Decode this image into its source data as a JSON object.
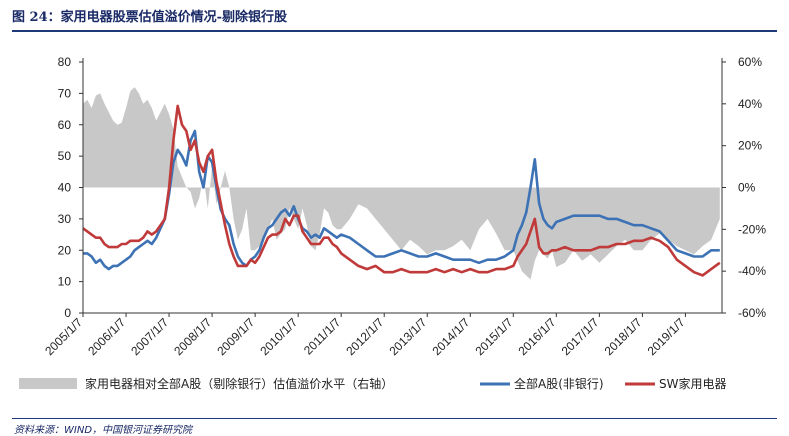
{
  "title": "图 24：家用电器股票估值溢价情况-剔除银行股",
  "source": "资料来源：WIND，中国银河证券研究院",
  "chart_data": {
    "type": "line",
    "x_ticks": [
      "2005/1/7",
      "2006/1/7",
      "2007/1/7",
      "2008/1/7",
      "2009/1/7",
      "2010/1/7",
      "2011/1/7",
      "2012/1/7",
      "2013/1/7",
      "2014/1/7",
      "2015/1/7",
      "2016/1/7",
      "2017/1/7",
      "2018/1/7",
      "2019/1/7"
    ],
    "xlim": [
      2005.0,
      2019.85
    ],
    "y_left": {
      "range": [
        0,
        80
      ],
      "ticks": [
        0,
        10,
        20,
        30,
        40,
        50,
        60,
        70,
        80
      ]
    },
    "y_right": {
      "range": [
        -60,
        60
      ],
      "ticks": [
        "-60%",
        "-40%",
        "-20%",
        "0%",
        "20%",
        "40%",
        "60%"
      ]
    },
    "series": [
      {
        "name": "家用电器相对全部A股（剔除银行）估值溢价水平（右轴）",
        "type": "area",
        "axis": "right",
        "color": "#c8c8c8",
        "x": [
          2005.0,
          2005.1,
          2005.2,
          2005.3,
          2005.4,
          2005.5,
          2005.6,
          2005.7,
          2005.8,
          2005.9,
          2006.0,
          2006.1,
          2006.2,
          2006.3,
          2006.4,
          2006.5,
          2006.6,
          2006.7,
          2006.8,
          2006.9,
          2007.0,
          2007.1,
          2007.2,
          2007.3,
          2007.4,
          2007.5,
          2007.6,
          2007.7,
          2007.8,
          2007.9,
          2008.0,
          2008.1,
          2008.2,
          2008.3,
          2008.4,
          2008.5,
          2008.6,
          2008.7,
          2008.8,
          2008.9,
          2009.0,
          2009.1,
          2009.2,
          2009.3,
          2009.4,
          2009.5,
          2009.6,
          2009.7,
          2009.8,
          2009.9,
          2010.0,
          2010.1,
          2010.2,
          2010.3,
          2010.4,
          2010.5,
          2010.6,
          2010.7,
          2010.8,
          2010.9,
          2011.0,
          2011.2,
          2011.4,
          2011.6,
          2011.8,
          2012.0,
          2012.2,
          2012.4,
          2012.6,
          2012.8,
          2013.0,
          2013.2,
          2013.4,
          2013.6,
          2013.8,
          2014.0,
          2014.2,
          2014.4,
          2014.6,
          2014.8,
          2015.0,
          2015.1,
          2015.2,
          2015.3,
          2015.4,
          2015.5,
          2015.6,
          2015.7,
          2015.8,
          2015.9,
          2016.0,
          2016.2,
          2016.4,
          2016.6,
          2016.8,
          2017.0,
          2017.2,
          2017.4,
          2017.6,
          2017.8,
          2018.0,
          2018.2,
          2018.4,
          2018.6,
          2018.8,
          2019.0,
          2019.2,
          2019.4,
          2019.6,
          2019.8
        ],
        "y": [
          40,
          42,
          38,
          44,
          45,
          40,
          36,
          32,
          30,
          31,
          38,
          46,
          48,
          45,
          40,
          42,
          38,
          32,
          36,
          40,
          35,
          28,
          10,
          5,
          0,
          -2,
          -10,
          -5,
          5,
          -10,
          10,
          -8,
          0,
          8,
          0,
          -15,
          -25,
          -20,
          -10,
          -30,
          -30,
          -28,
          -25,
          -20,
          -15,
          -25,
          -22,
          -20,
          -10,
          -15,
          -20,
          -10,
          -18,
          -28,
          -30,
          -22,
          -10,
          -12,
          -18,
          -20,
          -20,
          -15,
          -8,
          -10,
          -15,
          -20,
          -25,
          -30,
          -25,
          -28,
          -32,
          -30,
          -30,
          -28,
          -25,
          -30,
          -20,
          -15,
          -22,
          -30,
          -30,
          -35,
          -40,
          -42,
          -44,
          -35,
          -30,
          -32,
          -34,
          -30,
          -38,
          -36,
          -30,
          -35,
          -32,
          -36,
          -32,
          -28,
          -25,
          -30,
          -30,
          -25,
          -22,
          -25,
          -28,
          -30,
          -32,
          -28,
          -25,
          -15
        ]
      },
      {
        "name": "全部A股(非银行)",
        "type": "line",
        "axis": "left",
        "color": "#3d72b4",
        "x": [
          2005.0,
          2005.1,
          2005.2,
          2005.3,
          2005.4,
          2005.5,
          2005.6,
          2005.7,
          2005.8,
          2005.9,
          2006.0,
          2006.1,
          2006.2,
          2006.3,
          2006.4,
          2006.5,
          2006.6,
          2006.7,
          2006.8,
          2006.9,
          2007.0,
          2007.1,
          2007.2,
          2007.3,
          2007.4,
          2007.5,
          2007.6,
          2007.7,
          2007.8,
          2007.9,
          2008.0,
          2008.1,
          2008.2,
          2008.3,
          2008.4,
          2008.5,
          2008.6,
          2008.7,
          2008.8,
          2008.9,
          2009.0,
          2009.1,
          2009.2,
          2009.3,
          2009.4,
          2009.5,
          2009.6,
          2009.7,
          2009.8,
          2009.9,
          2010.0,
          2010.1,
          2010.2,
          2010.3,
          2010.4,
          2010.5,
          2010.6,
          2010.7,
          2010.8,
          2010.9,
          2011.0,
          2011.2,
          2011.4,
          2011.6,
          2011.8,
          2012.0,
          2012.2,
          2012.4,
          2012.6,
          2012.8,
          2013.0,
          2013.2,
          2013.4,
          2013.6,
          2013.8,
          2014.0,
          2014.2,
          2014.4,
          2014.6,
          2014.8,
          2015.0,
          2015.1,
          2015.2,
          2015.3,
          2015.4,
          2015.5,
          2015.6,
          2015.7,
          2015.8,
          2015.9,
          2016.0,
          2016.2,
          2016.4,
          2016.6,
          2016.8,
          2017.0,
          2017.2,
          2017.4,
          2017.6,
          2017.8,
          2018.0,
          2018.2,
          2018.4,
          2018.6,
          2018.8,
          2019.0,
          2019.2,
          2019.4,
          2019.6,
          2019.8
        ],
        "y": [
          19,
          19,
          18,
          16,
          17,
          15,
          14,
          15,
          15,
          16,
          17,
          18,
          20,
          21,
          22,
          23,
          22,
          24,
          27,
          30,
          38,
          48,
          52,
          50,
          47,
          55,
          58,
          45,
          40,
          50,
          48,
          40,
          33,
          30,
          28,
          22,
          18,
          16,
          15,
          17,
          18,
          20,
          24,
          27,
          28,
          30,
          32,
          33,
          31,
          34,
          30,
          27,
          26,
          24,
          25,
          24,
          27,
          26,
          25,
          24,
          25,
          24,
          22,
          20,
          18,
          18,
          19,
          20,
          19,
          18,
          18,
          19,
          18,
          17,
          17,
          17,
          16,
          17,
          17,
          18,
          20,
          25,
          28,
          32,
          40,
          49,
          35,
          30,
          28,
          27,
          29,
          30,
          31,
          31,
          31,
          31,
          30,
          30,
          29,
          28,
          28,
          27,
          26,
          23,
          20,
          19,
          18,
          18,
          20,
          20
        ]
      },
      {
        "name": "SW家用电器",
        "type": "line",
        "axis": "left",
        "color": "#c03a3a",
        "x": [
          2005.0,
          2005.1,
          2005.2,
          2005.3,
          2005.4,
          2005.5,
          2005.6,
          2005.7,
          2005.8,
          2005.9,
          2006.0,
          2006.1,
          2006.2,
          2006.3,
          2006.4,
          2006.5,
          2006.6,
          2006.7,
          2006.8,
          2006.9,
          2007.0,
          2007.1,
          2007.2,
          2007.3,
          2007.4,
          2007.5,
          2007.6,
          2007.7,
          2007.8,
          2007.9,
          2008.0,
          2008.1,
          2008.2,
          2008.3,
          2008.4,
          2008.5,
          2008.6,
          2008.7,
          2008.8,
          2008.9,
          2009.0,
          2009.1,
          2009.2,
          2009.3,
          2009.4,
          2009.5,
          2009.6,
          2009.7,
          2009.8,
          2009.9,
          2010.0,
          2010.1,
          2010.2,
          2010.3,
          2010.4,
          2010.5,
          2010.6,
          2010.7,
          2010.8,
          2010.9,
          2011.0,
          2011.2,
          2011.4,
          2011.6,
          2011.8,
          2012.0,
          2012.2,
          2012.4,
          2012.6,
          2012.8,
          2013.0,
          2013.2,
          2013.4,
          2013.6,
          2013.8,
          2014.0,
          2014.2,
          2014.4,
          2014.6,
          2014.8,
          2015.0,
          2015.1,
          2015.2,
          2015.3,
          2015.4,
          2015.5,
          2015.6,
          2015.7,
          2015.8,
          2015.9,
          2016.0,
          2016.2,
          2016.4,
          2016.6,
          2016.8,
          2017.0,
          2017.2,
          2017.4,
          2017.6,
          2017.8,
          2018.0,
          2018.2,
          2018.4,
          2018.6,
          2018.8,
          2019.0,
          2019.2,
          2019.4,
          2019.6,
          2019.8
        ],
        "y": [
          27,
          26,
          25,
          24,
          24,
          22,
          21,
          21,
          21,
          22,
          22,
          23,
          23,
          23,
          24,
          26,
          25,
          26,
          28,
          30,
          40,
          55,
          66,
          60,
          58,
          52,
          55,
          48,
          45,
          50,
          52,
          42,
          35,
          28,
          22,
          18,
          15,
          15,
          15,
          17,
          16,
          18,
          21,
          24,
          25,
          25,
          26,
          30,
          28,
          31,
          31,
          26,
          24,
          22,
          22,
          22,
          24,
          24,
          22,
          21,
          19,
          17,
          15,
          14,
          15,
          13,
          13,
          14,
          13,
          13,
          13,
          14,
          13,
          14,
          13,
          14,
          13,
          13,
          14,
          14,
          15,
          18,
          20,
          22,
          26,
          30,
          21,
          19,
          19,
          20,
          20,
          21,
          20,
          20,
          20,
          21,
          21,
          22,
          22,
          23,
          23,
          24,
          23,
          21,
          17,
          15,
          13,
          12,
          14,
          16
        ]
      }
    ],
    "legend_position": "bottom",
    "grid": false
  }
}
